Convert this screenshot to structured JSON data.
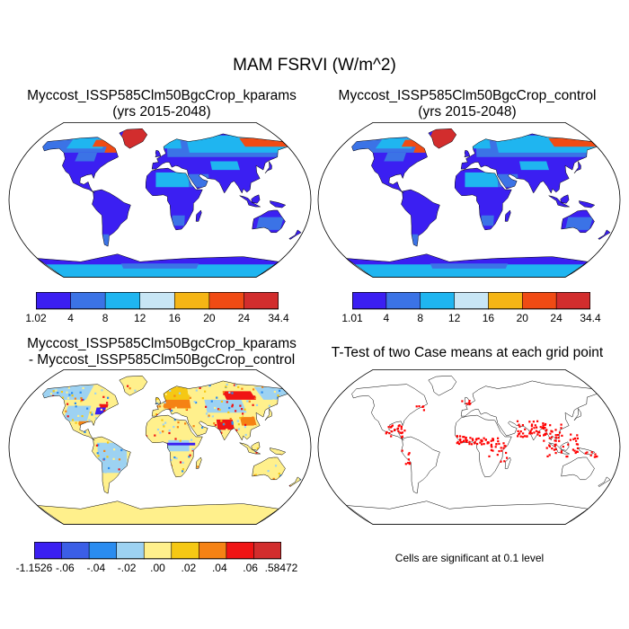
{
  "figure": {
    "title": "MAM FSRVI (W/m^2)"
  },
  "panels": {
    "case1": {
      "title_line1": "Myccost_ISSP585Clm50BgcCrop_kparams",
      "title_line2": "(yrs 2015-2048)"
    },
    "case2": {
      "title_line1": "Myccost_ISSP585Clm50BgcCrop_control",
      "title_line2": "(yrs 2015-2048)"
    },
    "diff": {
      "title_line1": "Myccost_ISSP585Clm50BgcCrop_kparams",
      "title_line2": "- Myccost_ISSP585Clm50BgcCrop_control"
    },
    "ttest": {
      "title_line1": "T-Test of two Case means at each grid point",
      "note": "Cells are significant at 0.1 level"
    }
  },
  "colorbars": {
    "case1": {
      "colors": [
        "#3b1ff2",
        "#3b73e6",
        "#1fb5f0",
        "#c8e6f5",
        "#f5b515",
        "#f04b14",
        "#d22d2d"
      ],
      "labels": [
        "1.02",
        "4",
        "8",
        "12",
        "16",
        "20",
        "24",
        "34.4"
      ]
    },
    "case2": {
      "colors": [
        "#3b1ff2",
        "#3b73e6",
        "#1fb5f0",
        "#c8e6f5",
        "#f5b515",
        "#f04b14",
        "#d22d2d"
      ],
      "labels": [
        "1.01",
        "4",
        "8",
        "12",
        "16",
        "20",
        "24",
        "34.4"
      ]
    },
    "diff": {
      "colors": [
        "#3b1ff2",
        "#3b5ee6",
        "#2a8cf0",
        "#9dd2f2",
        "#fff08c",
        "#f5c814",
        "#f58214",
        "#f01414",
        "#d22d2d"
      ],
      "labels": [
        "-1.1526",
        "-.06",
        "-.04",
        "-.02",
        ".00",
        ".02",
        ".04",
        ".06",
        ".58472"
      ]
    }
  },
  "map_colors": {
    "ocean": "#ffffff",
    "coast": "#000000",
    "case_land_low": "#3b1ff2",
    "case_land_mid": "#3b73e6",
    "case_land_cyan": "#1fb5f0",
    "case_land_high": "#d22d2d",
    "case_land_orange": "#f04b14",
    "diff_base": "#fff08c",
    "diff_light_blue": "#9dd2f2",
    "ttest_sig": "#ff0000"
  }
}
